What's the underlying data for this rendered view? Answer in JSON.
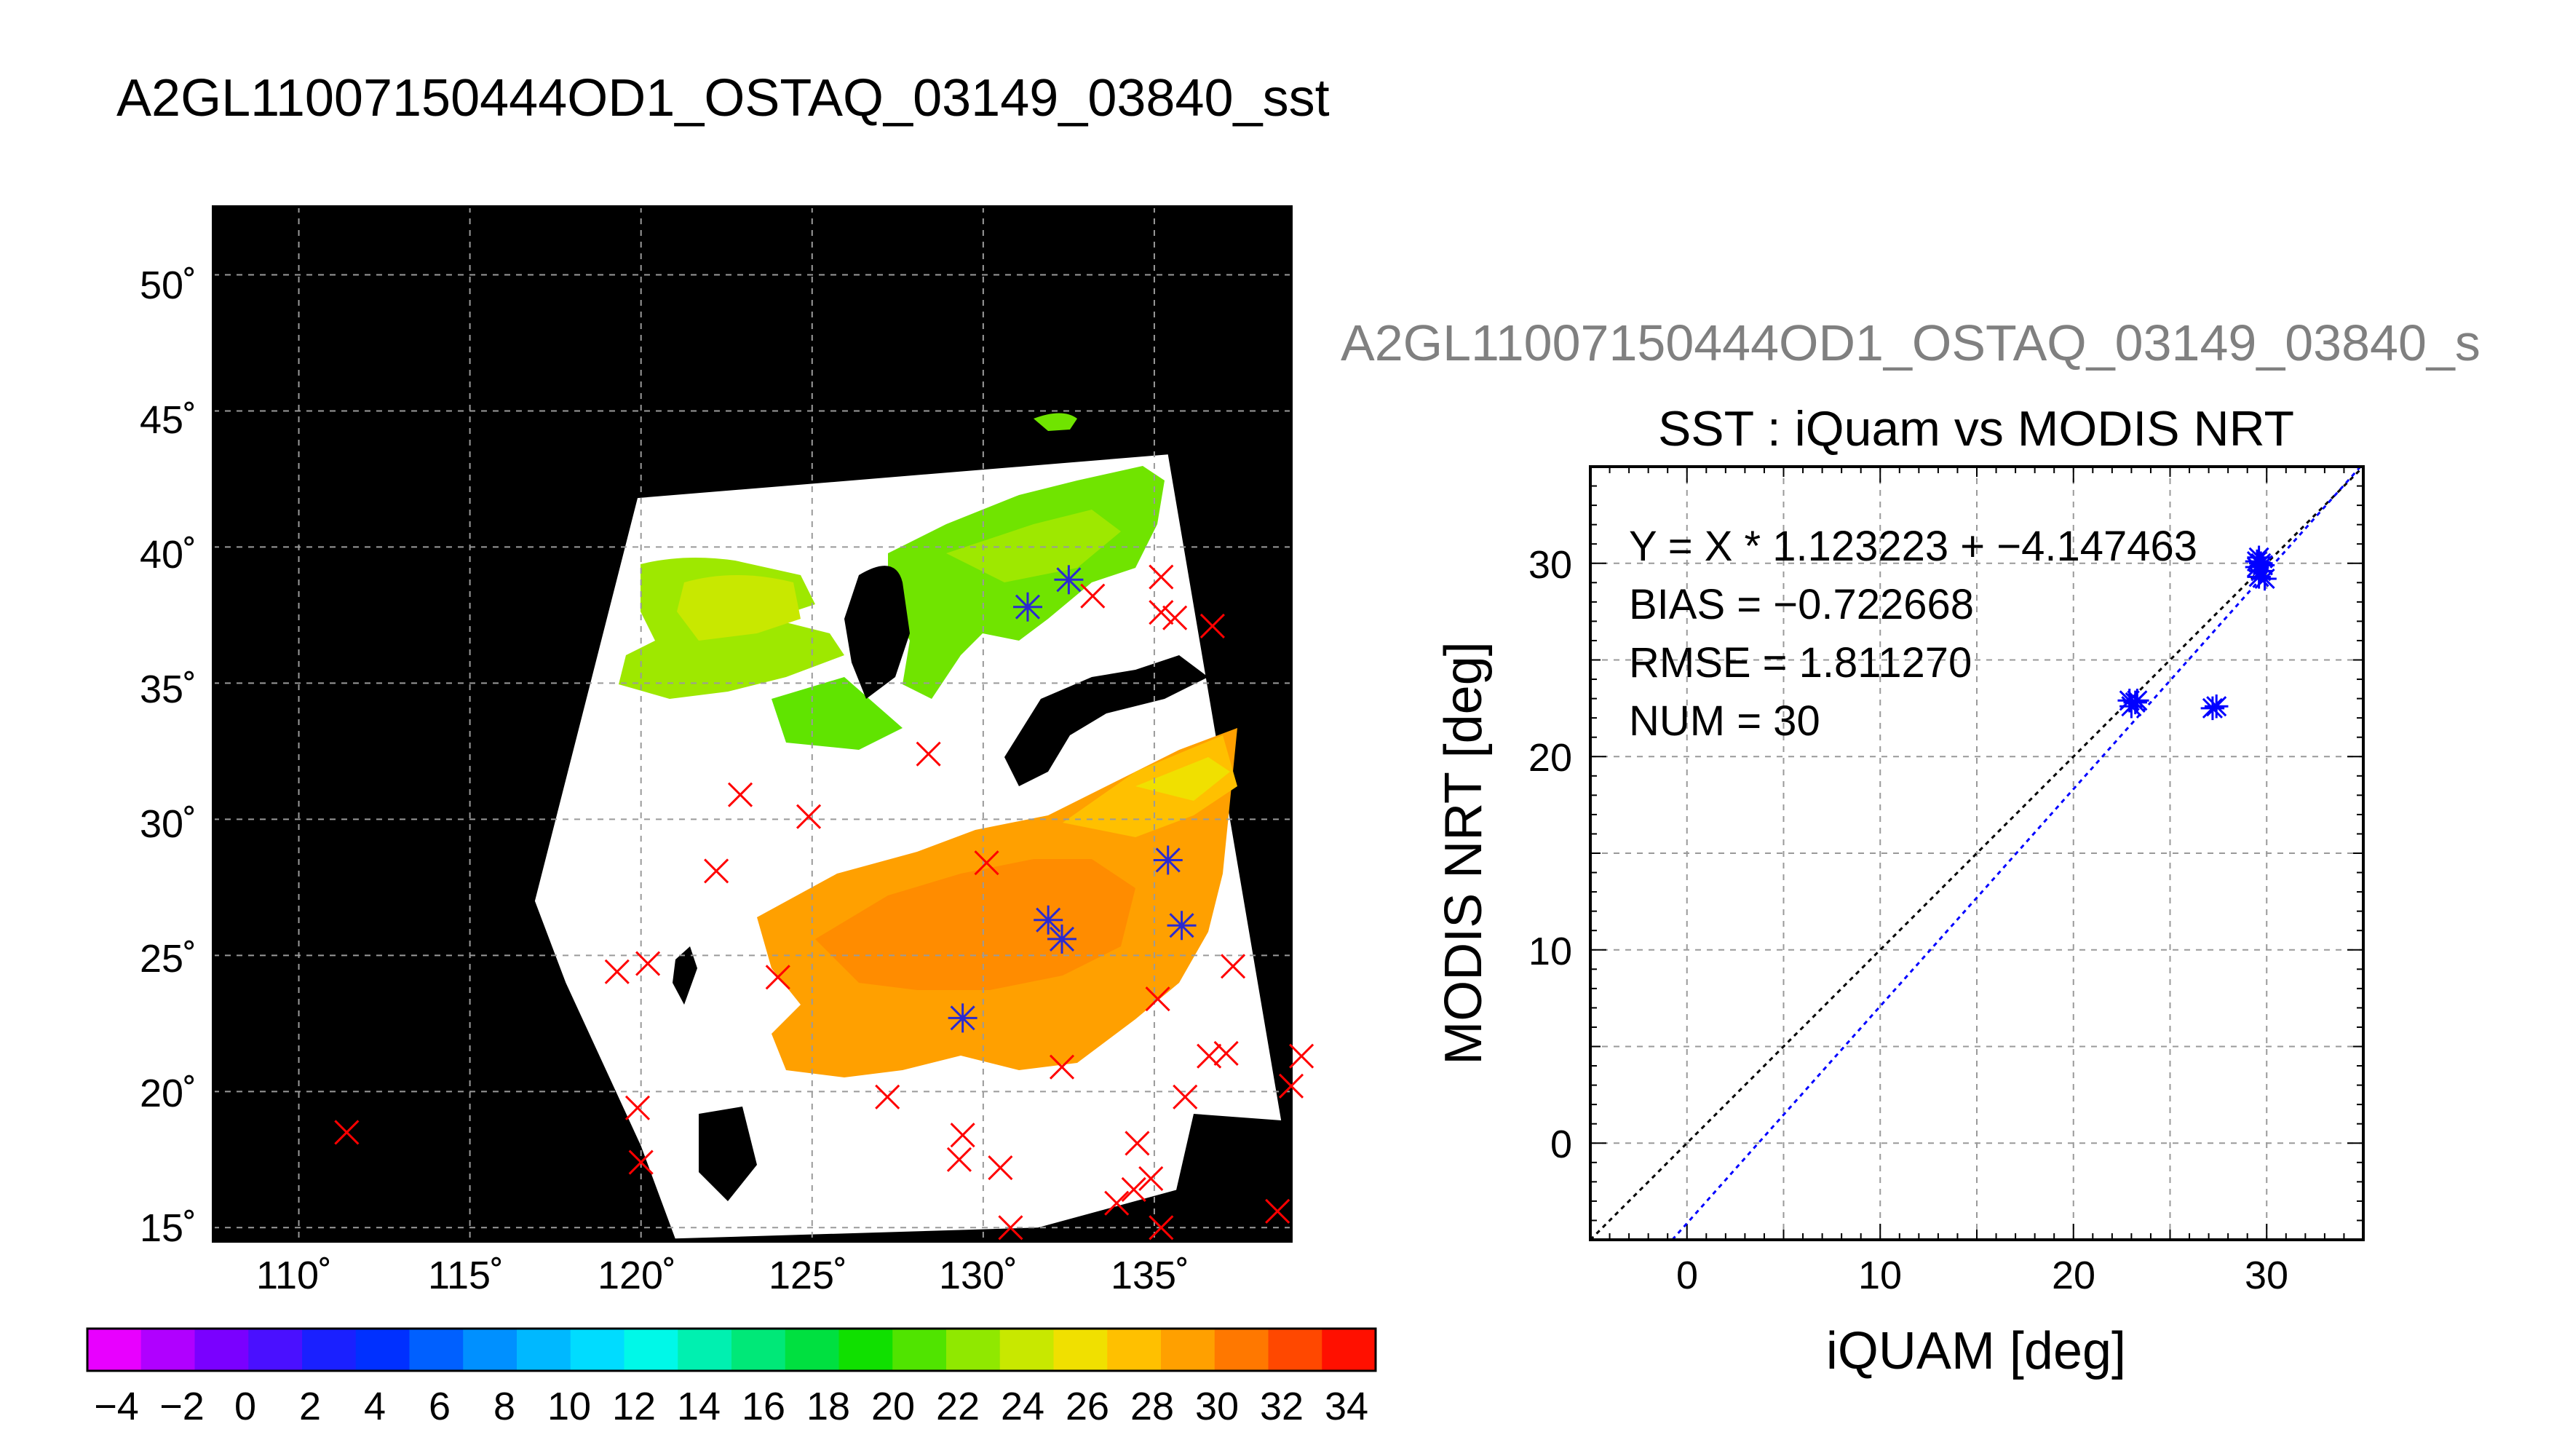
{
  "page": {
    "title": "A2GL11007150444OD1_OSTAQ_03149_03840_sst"
  },
  "colors": {
    "land": "#000000",
    "cloud": "#ffffff",
    "grid": "#9a9a9a",
    "match_marker": "#ff0000",
    "valid_marker": "#2a2ad0",
    "fit_line": "#0000ff",
    "identity_line": "#000000",
    "truncated_title": "#808080"
  },
  "map": {
    "lat_labels": [
      "50˚",
      "45˚",
      "40˚",
      "35˚",
      "30˚",
      "25˚",
      "20˚",
      "15˚"
    ],
    "lon_labels": [
      "110˚",
      "115˚",
      "120˚",
      "125˚",
      "130˚",
      "135˚"
    ]
  },
  "colorbar": {
    "labels": [
      "−4",
      "−2",
      "0",
      "2",
      "4",
      "6",
      "8",
      "10",
      "12",
      "14",
      "16",
      "18",
      "20",
      "22",
      "24",
      "26",
      "28",
      "30",
      "32",
      "34"
    ],
    "colors": [
      "#e800ff",
      "#b000ff",
      "#7a00ff",
      "#4a10ff",
      "#1a20ff",
      "#0030ff",
      "#0060ff",
      "#0090ff",
      "#00b8ff",
      "#00dcff",
      "#00f8e8",
      "#00f0b0",
      "#00e878",
      "#00e040",
      "#10e000",
      "#50e400",
      "#90e800",
      "#c8e800",
      "#f0e000",
      "#ffc000",
      "#ffa000",
      "#ff7800",
      "#ff4800",
      "#ff1000"
    ]
  },
  "scatter": {
    "header": "A2GL11007150444OD1_OSTAQ_03149_03840_s",
    "title": "SST : iQuam vs MODIS NRT",
    "xlabel": "iQUAM [deg]",
    "ylabel": "MODIS NRT [deg]",
    "x_ticks": [
      "0",
      "10",
      "20",
      "30"
    ],
    "y_ticks": [
      "0",
      "10",
      "20",
      "30"
    ],
    "stats": {
      "fit": "Y = X * 1.123223 + −4.147463",
      "bias": "BIAS = −0.722668",
      "rmse": "RMSE = 1.811270",
      "num": "NUM = 30"
    }
  },
  "chart_data": [
    {
      "type": "scatter",
      "title": "A2GL11007150444OD1_OSTAQ_03149_03840_sst",
      "xlabel": "",
      "ylabel": "",
      "xlim": [
        107.5,
        139
      ],
      "ylim": [
        14.5,
        52.5
      ],
      "x_ticks": [
        110,
        115,
        120,
        125,
        130,
        135
      ],
      "y_ticks": [
        15,
        20,
        25,
        30,
        35,
        40,
        45,
        50
      ],
      "grid": true,
      "colorbar": {
        "min": -4,
        "max": 34,
        "step": 2,
        "units": ""
      },
      "swath_corners": [
        [
          119.9,
          41.8
        ],
        [
          135.4,
          43.4
        ],
        [
          138.9,
          17.5
        ],
        [
          131.6,
          15.0
        ],
        [
          121.0,
          14.6
        ],
        [
          120.0,
          18.0
        ],
        [
          117.8,
          24.0
        ],
        [
          116.9,
          27.0
        ]
      ],
      "series": [
        {
          "marker": "x",
          "points": [
            [
              111.4,
              18.5
            ],
            [
              119.3,
              24.4
            ],
            [
              120.2,
              24.7
            ],
            [
              119.9,
              19.4
            ],
            [
              120.0,
              17.4
            ],
            [
              122.2,
              28.1
            ],
            [
              122.9,
              30.9
            ],
            [
              124.9,
              30.1
            ],
            [
              124.0,
              24.2
            ],
            [
              127.2,
              19.8
            ],
            [
              128.4,
              32.4
            ],
            [
              130.1,
              28.4
            ],
            [
              129.4,
              18.4
            ],
            [
              129.3,
              17.5
            ],
            [
              130.5,
              17.2
            ],
            [
              130.8,
              15.0
            ],
            [
              132.3,
              20.9
            ],
            [
              133.9,
              15.9
            ],
            [
              134.5,
              18.1
            ],
            [
              134.4,
              16.4
            ],
            [
              134.9,
              16.8
            ],
            [
              135.2,
              15.0
            ],
            [
              135.1,
              23.4
            ],
            [
              135.9,
              19.8
            ],
            [
              136.6,
              21.3
            ],
            [
              137.1,
              21.4
            ],
            [
              137.3,
              24.6
            ],
            [
              135.2,
              38.9
            ],
            [
              135.2,
              37.6
            ],
            [
              135.6,
              37.4
            ],
            [
              136.7,
              37.1
            ],
            [
              133.2,
              38.2
            ],
            [
              138.6,
              15.6
            ],
            [
              139.0,
              20.2
            ],
            [
              139.3,
              21.3
            ]
          ]
        },
        {
          "marker": "asterisk",
          "points": [
            [
              131.3,
              37.8
            ],
            [
              132.5,
              38.8
            ],
            [
              135.4,
              28.5
            ],
            [
              131.9,
              26.3
            ],
            [
              132.3,
              25.6
            ],
            [
              135.8,
              26.1
            ],
            [
              129.4,
              22.7
            ]
          ]
        }
      ]
    },
    {
      "type": "scatter",
      "title": "SST : iQuam vs MODIS NRT",
      "xlabel": "iQUAM [deg]",
      "ylabel": "MODIS NRT [deg]",
      "xlim": [
        -5,
        35
      ],
      "ylim": [
        -5,
        35
      ],
      "x_ticks": [
        0,
        10,
        20,
        30
      ],
      "y_ticks": [
        0,
        10,
        20,
        30
      ],
      "grid": true,
      "series": [
        {
          "marker": "asterisk",
          "points": [
            [
              22.9,
              22.9
            ],
            [
              23.2,
              22.8
            ],
            [
              23.0,
              22.6
            ],
            [
              23.3,
              22.9
            ],
            [
              27.2,
              22.5
            ],
            [
              27.4,
              22.6
            ],
            [
              29.6,
              30.3
            ],
            [
              29.7,
              30.0
            ],
            [
              29.5,
              29.8
            ],
            [
              29.8,
              29.9
            ],
            [
              29.6,
              29.3
            ],
            [
              29.9,
              29.2
            ],
            [
              29.7,
              29.6
            ],
            [
              29.5,
              30.1
            ]
          ]
        }
      ],
      "lines": {
        "fit": {
          "slope": 1.123223,
          "intercept": -4.147463
        },
        "identity": {
          "slope": 1,
          "intercept": 0
        }
      },
      "stats": {
        "bias": -0.722668,
        "rmse": 1.81127,
        "num": 30
      }
    }
  ]
}
